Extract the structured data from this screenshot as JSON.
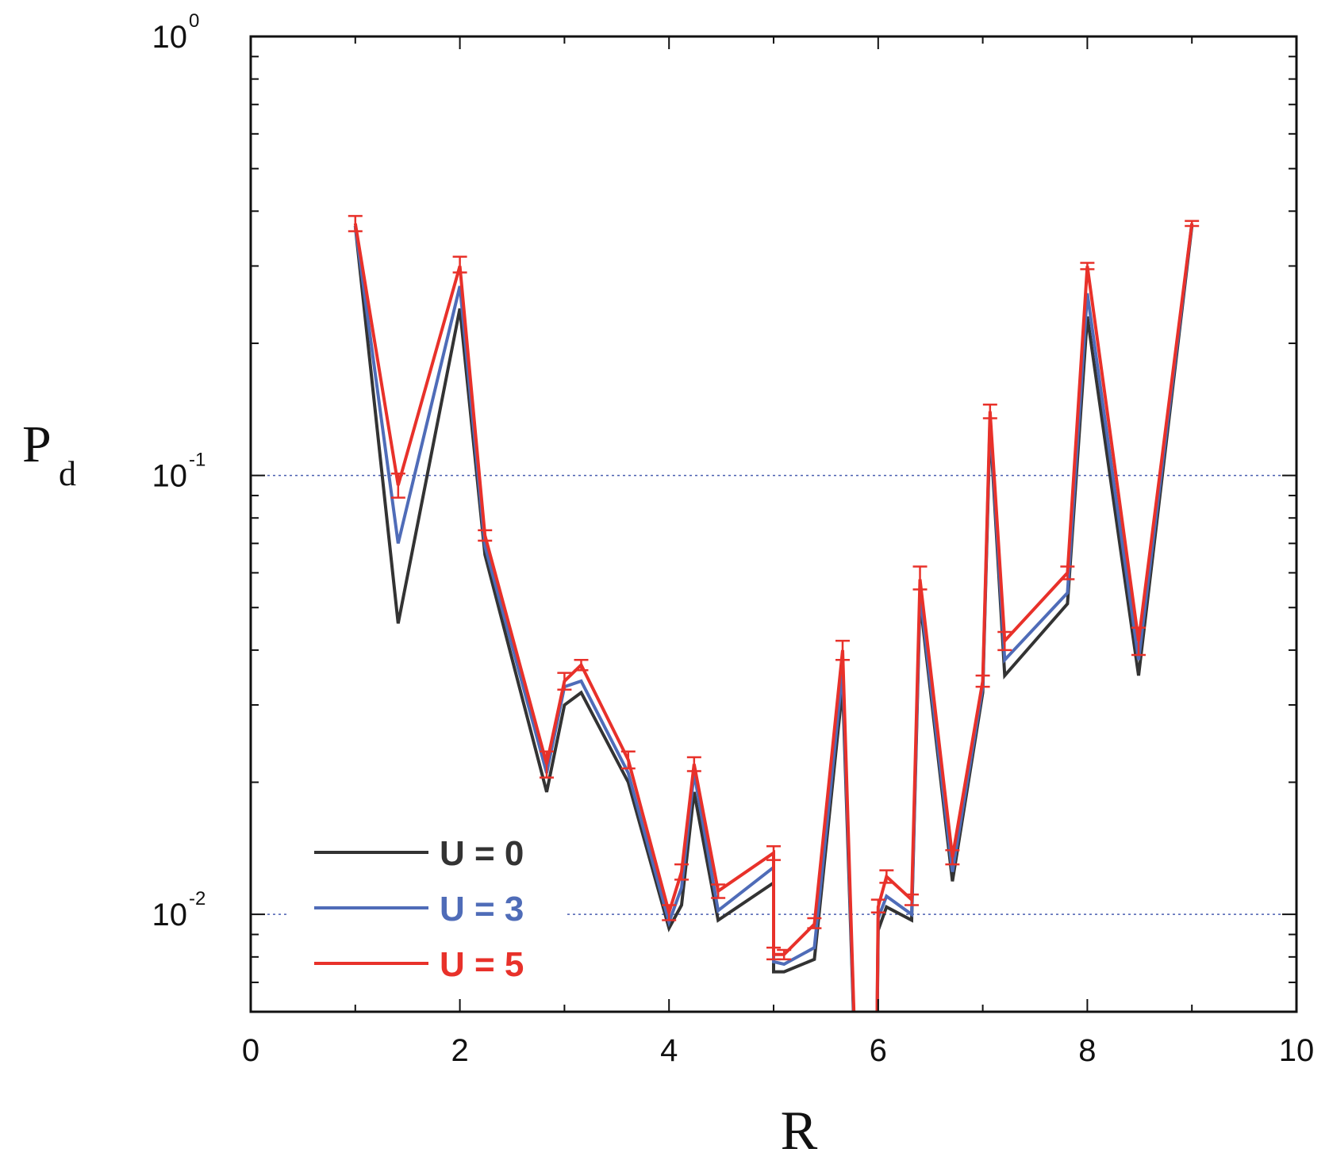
{
  "chart_data": {
    "type": "line",
    "xlabel": "R",
    "ylabel": "P",
    "ylabel_subscript": "d",
    "xlim": [
      0,
      10
    ],
    "ylim": [
      0.006,
      1
    ],
    "yscale": "log",
    "xticks": [
      0,
      2,
      4,
      6,
      8,
      10
    ],
    "xtick_labels": [
      "0",
      "2",
      "4",
      "6",
      "8",
      "10"
    ],
    "yticks": [
      {
        "value": 1,
        "base": "10",
        "exp": "0"
      },
      {
        "value": 0.1,
        "base": "10",
        "exp": "-1"
      },
      {
        "value": 0.01,
        "base": "10",
        "exp": "-2"
      }
    ],
    "reference_lines": [
      0.1,
      0.01
    ],
    "legend_position": "bottom-left",
    "series": [
      {
        "name": "U = 0",
        "color": "#333333",
        "points": [
          [
            1.0,
            0.37
          ],
          [
            1.41,
            0.046
          ],
          [
            2.0,
            0.24
          ],
          [
            2.24,
            0.066
          ],
          [
            2.83,
            0.019
          ],
          [
            3.0,
            0.03
          ],
          [
            3.16,
            0.032
          ],
          [
            3.61,
            0.02
          ],
          [
            4.0,
            0.0093
          ],
          [
            4.12,
            0.0105
          ],
          [
            4.24,
            0.019
          ],
          [
            4.47,
            0.0097
          ],
          [
            5.0,
            0.0118
          ],
          [
            5.0,
            0.0074
          ],
          [
            5.1,
            0.0074
          ],
          [
            5.39,
            0.0079
          ],
          [
            5.66,
            0.033
          ],
          [
            5.83,
            0.002
          ],
          [
            5.97,
            0.002
          ],
          [
            6.0,
            0.0092
          ],
          [
            6.08,
            0.0104
          ],
          [
            6.32,
            0.0097
          ],
          [
            6.4,
            0.052
          ],
          [
            6.71,
            0.0119
          ],
          [
            7.0,
            0.032
          ],
          [
            7.07,
            0.13
          ],
          [
            7.21,
            0.035
          ],
          [
            7.81,
            0.051
          ],
          [
            8.0,
            0.23
          ],
          [
            8.49,
            0.035
          ],
          [
            9.0,
            0.37
          ]
        ]
      },
      {
        "name": "U = 3",
        "color": "#4f6cb8",
        "points": [
          [
            1.0,
            0.37
          ],
          [
            1.41,
            0.07
          ],
          [
            2.0,
            0.27
          ],
          [
            2.24,
            0.069
          ],
          [
            2.83,
            0.021
          ],
          [
            3.0,
            0.033
          ],
          [
            3.16,
            0.034
          ],
          [
            3.61,
            0.021
          ],
          [
            4.0,
            0.0096
          ],
          [
            4.12,
            0.0115
          ],
          [
            4.24,
            0.021
          ],
          [
            4.47,
            0.0102
          ],
          [
            5.0,
            0.0128
          ],
          [
            5.0,
            0.0078
          ],
          [
            5.1,
            0.0077
          ],
          [
            5.39,
            0.0084
          ],
          [
            5.66,
            0.036
          ],
          [
            5.83,
            0.002
          ],
          [
            5.97,
            0.002
          ],
          [
            6.0,
            0.0098
          ],
          [
            6.08,
            0.011
          ],
          [
            6.32,
            0.01
          ],
          [
            6.4,
            0.054
          ],
          [
            6.71,
            0.0125
          ],
          [
            7.0,
            0.033
          ],
          [
            7.07,
            0.135
          ],
          [
            7.21,
            0.038
          ],
          [
            7.81,
            0.054
          ],
          [
            8.0,
            0.26
          ],
          [
            8.49,
            0.038
          ],
          [
            9.0,
            0.375
          ]
        ]
      },
      {
        "name": "U = 5",
        "color": "#e8312a",
        "points": [
          [
            1.0,
            0.375
          ],
          [
            1.41,
            0.095
          ],
          [
            2.0,
            0.3
          ],
          [
            2.24,
            0.073
          ],
          [
            2.83,
            0.022
          ],
          [
            3.0,
            0.034
          ],
          [
            3.16,
            0.037
          ],
          [
            3.61,
            0.0225
          ],
          [
            4.0,
            0.0101
          ],
          [
            4.12,
            0.0125
          ],
          [
            4.24,
            0.022
          ],
          [
            4.47,
            0.0113
          ],
          [
            5.0,
            0.0138
          ],
          [
            5.0,
            0.0081
          ],
          [
            5.1,
            0.0081
          ],
          [
            5.39,
            0.0095
          ],
          [
            5.66,
            0.04
          ],
          [
            5.83,
            0.002
          ],
          [
            5.97,
            0.002
          ],
          [
            6.0,
            0.0104
          ],
          [
            6.08,
            0.0122
          ],
          [
            6.32,
            0.0108
          ],
          [
            6.4,
            0.058
          ],
          [
            6.71,
            0.0135
          ],
          [
            7.0,
            0.034
          ],
          [
            7.07,
            0.14
          ],
          [
            7.21,
            0.042
          ],
          [
            7.81,
            0.06
          ],
          [
            8.0,
            0.3
          ],
          [
            8.49,
            0.042
          ],
          [
            9.0,
            0.375
          ]
        ],
        "error_bars": [
          [
            1.0,
            0.36,
            0.39
          ],
          [
            1.41,
            0.089,
            0.101
          ],
          [
            2.0,
            0.29,
            0.315
          ],
          [
            2.24,
            0.071,
            0.075
          ],
          [
            2.83,
            0.0205,
            0.0235
          ],
          [
            3.0,
            0.0325,
            0.0355
          ],
          [
            3.16,
            0.036,
            0.038
          ],
          [
            3.61,
            0.0215,
            0.0235
          ],
          [
            4.0,
            0.0097,
            0.0105
          ],
          [
            4.12,
            0.012,
            0.013
          ],
          [
            4.24,
            0.0212,
            0.0228
          ],
          [
            4.47,
            0.0109,
            0.0117
          ],
          [
            5.0,
            0.0133,
            0.0143
          ],
          [
            5.0,
            0.0079,
            0.0084
          ],
          [
            5.1,
            0.0079,
            0.0083
          ],
          [
            5.39,
            0.0093,
            0.0098
          ],
          [
            5.66,
            0.038,
            0.042
          ],
          [
            6.0,
            0.0101,
            0.0108
          ],
          [
            6.08,
            0.0118,
            0.0126
          ],
          [
            6.32,
            0.0105,
            0.0111
          ],
          [
            6.4,
            0.055,
            0.062
          ],
          [
            6.71,
            0.013,
            0.014
          ],
          [
            7.0,
            0.033,
            0.035
          ],
          [
            7.07,
            0.135,
            0.145
          ],
          [
            7.21,
            0.04,
            0.044
          ],
          [
            7.81,
            0.058,
            0.062
          ],
          [
            8.0,
            0.295,
            0.305
          ],
          [
            8.49,
            0.039,
            0.045
          ],
          [
            9.0,
            0.37,
            0.38
          ]
        ]
      }
    ]
  }
}
